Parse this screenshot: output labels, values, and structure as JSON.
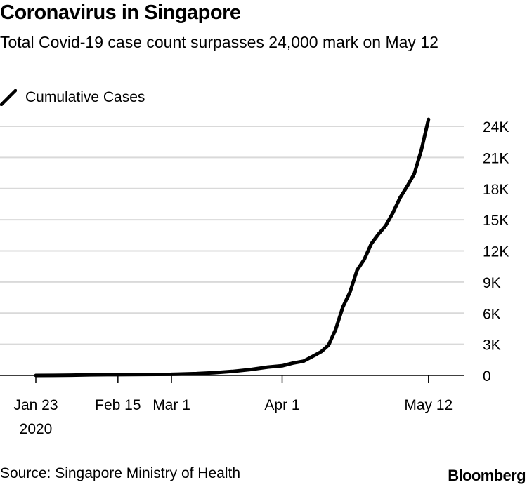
{
  "header": {
    "title": "Coronavirus in Singapore",
    "subtitle": "Total Covid-19 case count surpasses 24,000 mark on May 12"
  },
  "legend": {
    "label": "Cumulative Cases",
    "icon": "line-swatch-icon",
    "color": "#000000"
  },
  "footer": {
    "source": "Source: Singapore Ministry of Health",
    "brand": "Bloomberg"
  },
  "colors": {
    "line": "#000000",
    "grid": "#d9d9d9",
    "axis": "#000000",
    "text": "#000000"
  },
  "chart_data": {
    "type": "line",
    "title": "Coronavirus in Singapore",
    "subtitle": "Total Covid-19 case count surpasses 24,000 mark on May 12",
    "xlabel": "",
    "ylabel": "",
    "x_unit": "days since Jan 23, 2020",
    "xlim": [
      -5,
      120
    ],
    "ylim": [
      0,
      24000
    ],
    "y_axis_position": "right",
    "grid": true,
    "legend_position": "top-left",
    "y_ticks": [
      {
        "value": 0,
        "label": "0"
      },
      {
        "value": 3000,
        "label": "3K"
      },
      {
        "value": 6000,
        "label": "6K"
      },
      {
        "value": 9000,
        "label": "9K"
      },
      {
        "value": 12000,
        "label": "12K"
      },
      {
        "value": 15000,
        "label": "15K"
      },
      {
        "value": 18000,
        "label": "18K"
      },
      {
        "value": 21000,
        "label": "21K"
      },
      {
        "value": 24000,
        "label": "24K"
      }
    ],
    "x_ticks": [
      {
        "value": 0,
        "label": "Jan 23",
        "sublabel": "2020"
      },
      {
        "value": 23,
        "label": "Feb 15",
        "sublabel": ""
      },
      {
        "value": 38,
        "label": "Mar 1",
        "sublabel": ""
      },
      {
        "value": 69,
        "label": "Apr 1",
        "sublabel": ""
      },
      {
        "value": 110,
        "label": "May 12",
        "sublabel": ""
      }
    ],
    "series": [
      {
        "name": "Cumulative Cases",
        "x": [
          0,
          5,
          10,
          15,
          20,
          23,
          30,
          38,
          45,
          50,
          55,
          60,
          65,
          69,
          72,
          75,
          78,
          80,
          82,
          84,
          86,
          88,
          90,
          92,
          94,
          96,
          98,
          100,
          102,
          104,
          106,
          108,
          110
        ],
        "y": [
          1,
          10,
          30,
          58,
          75,
          75,
          98,
          106,
          178,
          266,
          385,
          558,
          802,
          926,
          1189,
          1375,
          1910,
          2299,
          2918,
          4427,
          6588,
          8014,
          10141,
          11178,
          12693,
          13624,
          14423,
          15641,
          17101,
          18205,
          19410,
          21707,
          24671
        ]
      }
    ]
  }
}
